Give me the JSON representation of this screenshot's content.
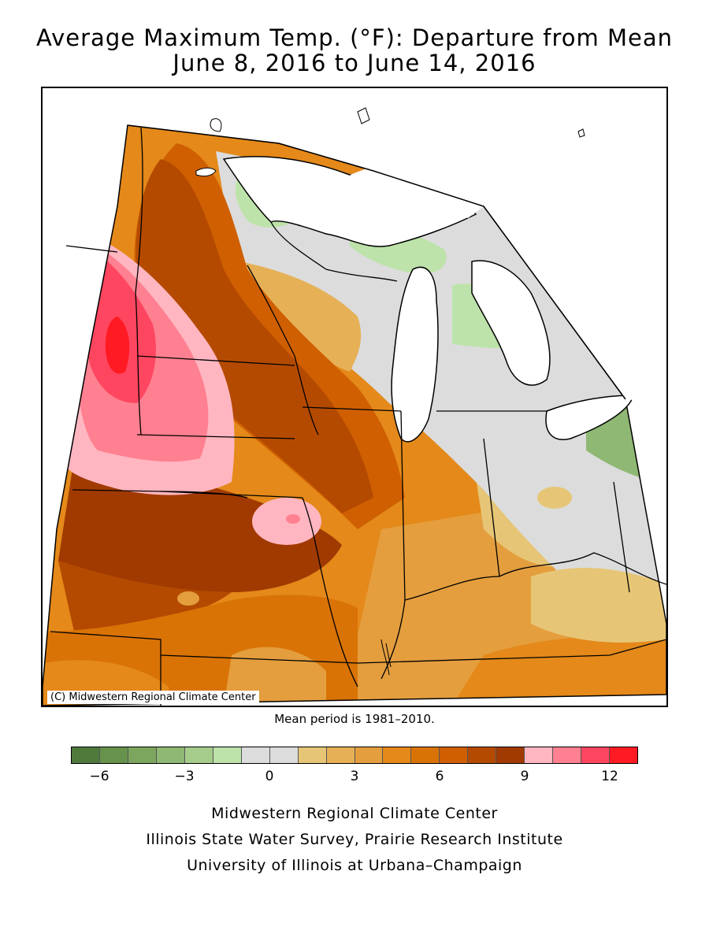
{
  "title": {
    "line1": "Average Maximum Temp. (°F): Departure from Mean",
    "line2": "June 8, 2016 to June 14, 2016"
  },
  "map": {
    "copyright": "(C) Midwestern Regional Climate Center"
  },
  "mean_period": "Mean period is 1981–2010.",
  "legend": {
    "colors": [
      "#4f7a3c",
      "#66924c",
      "#7ca65e",
      "#8fb874",
      "#a6cc8c",
      "#bde3aa",
      "#dcdcdc",
      "#dcdcdc",
      "#e6c676",
      "#e6b056",
      "#e49e3e",
      "#e4891a",
      "#d97306",
      "#cf5f00",
      "#b44a00",
      "#a13a00",
      "#ffb6c1",
      "#ff8090",
      "#ff4660",
      "#ff1a24"
    ],
    "tick_labels": [
      "−6",
      "−3",
      "0",
      "3",
      "6",
      "9",
      "12"
    ],
    "tick_values": [
      -6,
      -3,
      0,
      3,
      6,
      9,
      12
    ],
    "range": [
      -7,
      13
    ]
  },
  "credits": {
    "line1": "Midwestern Regional Climate Center",
    "line2": "Illinois State Water Survey, Prairie Research Institute",
    "line3": "University of Illinois at Urbana–Champaign"
  }
}
